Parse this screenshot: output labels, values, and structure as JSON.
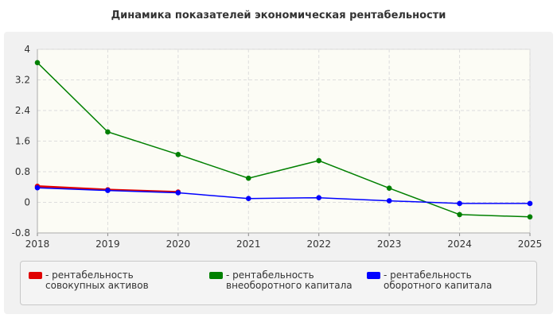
{
  "title": "Динамика показателей экономическая рентабельности",
  "chart_data": {
    "type": "line",
    "x": [
      "2018",
      "2019",
      "2020",
      "2021",
      "2022",
      "2023",
      "2024",
      "2025"
    ],
    "y_ticks": [
      "4",
      "3.2",
      "2.4",
      "1.6",
      "0.8",
      "0",
      "-0.8"
    ],
    "ylim": [
      -0.8,
      4
    ],
    "grid": true,
    "legend_position": "bottom",
    "series": [
      {
        "name": "- рентабельность совокупных активов",
        "color": "#e00000",
        "values": [
          0.42,
          0.33,
          0.27,
          null,
          null,
          null,
          null,
          null
        ]
      },
      {
        "name": "- рентабельность внеоборотного капитала",
        "color": "#008000",
        "values": [
          3.65,
          1.84,
          1.25,
          0.63,
          1.09,
          0.37,
          -0.32,
          -0.38
        ]
      },
      {
        "name": "- рентабельность оборотного капитала",
        "color": "#0000ff",
        "values": [
          0.38,
          0.31,
          0.25,
          0.1,
          0.12,
          0.04,
          -0.03,
          -0.03
        ]
      }
    ]
  }
}
